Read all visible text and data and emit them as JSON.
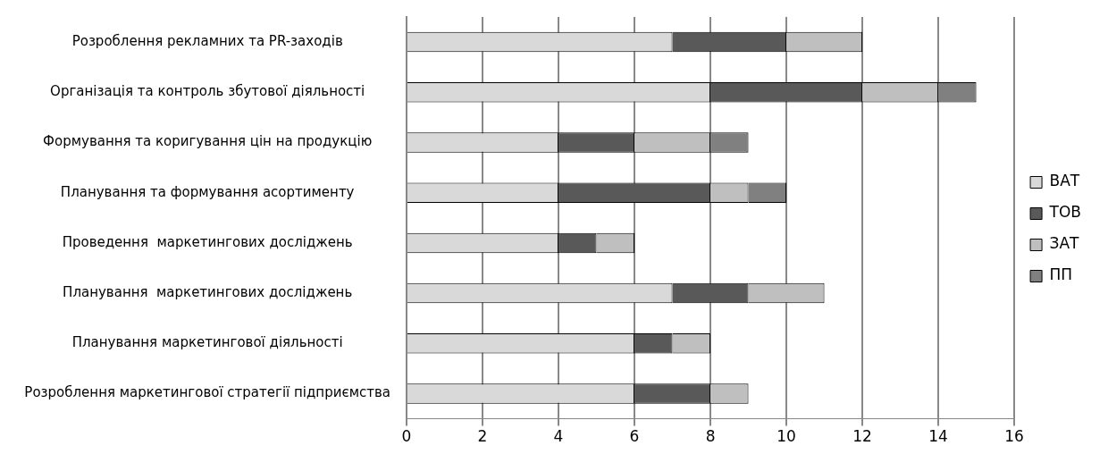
{
  "chart_data": {
    "type": "bar",
    "orientation": "horizontal",
    "stacked": true,
    "categories": [
      "Розроблення рекламних та PR-заходів",
      "Організація та контроль збутової діяльності",
      "Формування та коригування цін на продукцію",
      "Планування та формування асортименту",
      "Проведення  маркетингових досліджень",
      "Планування  маркетингових досліджень",
      "Планування маркетингової діяльності",
      "Розроблення маркетингової стратегії підприємства"
    ],
    "series": [
      {
        "name": "ВАТ",
        "color": "#d9d9d9",
        "values": [
          7,
          8,
          4,
          4,
          4,
          7,
          6,
          6
        ]
      },
      {
        "name": "ТОВ",
        "color": "#595959",
        "values": [
          3,
          4,
          2,
          4,
          1,
          2,
          1,
          2
        ]
      },
      {
        "name": "ЗАТ",
        "color": "#bfbfbf",
        "values": [
          2,
          2,
          2,
          1,
          1,
          2,
          1,
          1
        ]
      },
      {
        "name": "ПП",
        "color": "#808080",
        "values": [
          null,
          1,
          1,
          1,
          null,
          null,
          null,
          null
        ]
      }
    ],
    "xlim": [
      0,
      16
    ],
    "xticks": [
      0,
      2,
      4,
      6,
      8,
      10,
      12,
      14,
      16
    ],
    "grid": "x",
    "legend": "right"
  }
}
